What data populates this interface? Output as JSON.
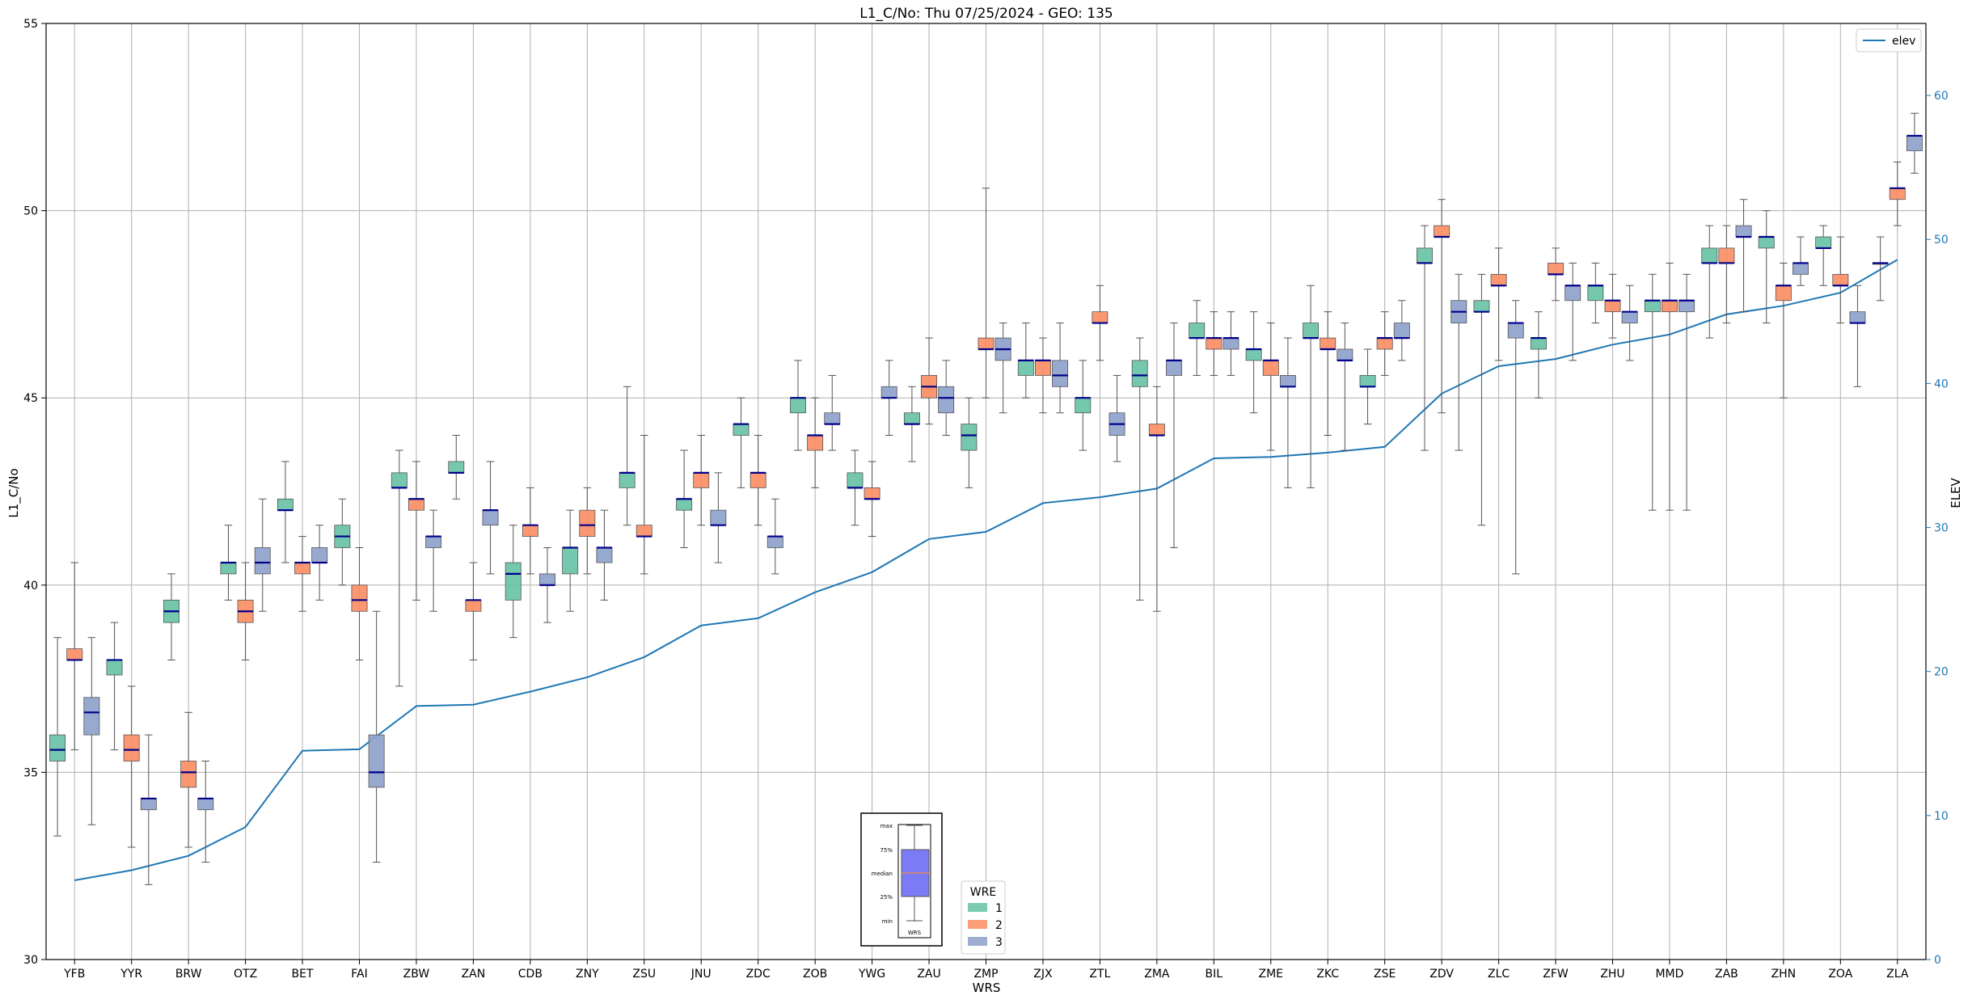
{
  "chart_data": {
    "type": "box",
    "title": "L1_C/No: Thu 07/25/2024 - GEO: 135",
    "xlabel": "WRS",
    "ylabel": "L1_C/No",
    "y2label": "ELEV",
    "ylim": [
      30,
      55
    ],
    "y2lim": [
      0,
      65
    ],
    "yticks": [
      30,
      35,
      40,
      45,
      50,
      55
    ],
    "y2ticks": [
      0,
      10,
      20,
      30,
      40,
      50,
      60
    ],
    "grid": true,
    "categories": [
      "YFB",
      "YYR",
      "BRW",
      "OTZ",
      "BET",
      "FAI",
      "ZBW",
      "ZAN",
      "CDB",
      "ZNY",
      "ZSU",
      "JNU",
      "ZDC",
      "ZOB",
      "YWG",
      "ZAU",
      "ZMP",
      "ZJX",
      "ZTL",
      "ZMA",
      "BIL",
      "ZME",
      "ZKC",
      "ZSE",
      "ZDV",
      "ZLC",
      "ZFW",
      "ZHU",
      "MMD",
      "ZAB",
      "ZHN",
      "ZOA",
      "ZLA"
    ],
    "box_legend": {
      "title": "WRE",
      "entries": [
        {
          "label": "1",
          "color": "#66c2a5"
        },
        {
          "label": "2",
          "color": "#fc8d62"
        },
        {
          "label": "3",
          "color": "#8da0cb"
        }
      ]
    },
    "line_legend": {
      "label": "elev",
      "color": "#1f77b4"
    },
    "median_color": "#00008b",
    "inset_legend": {
      "labels": [
        "max",
        "75%",
        "median",
        "25%",
        "min"
      ],
      "xlabel": "WRS",
      "fill_color": "#7b7bf5"
    },
    "boxes": [
      {
        "wrs": "YFB",
        "wre": 1,
        "min": 33.3,
        "q1": 35.3,
        "median": 35.6,
        "q3": 36.0,
        "max": 38.6
      },
      {
        "wrs": "YFB",
        "wre": 2,
        "min": 35.6,
        "q1": 38.0,
        "median": 38.0,
        "q3": 38.3,
        "max": 40.6
      },
      {
        "wrs": "YFB",
        "wre": 3,
        "min": 33.6,
        "q1": 36.0,
        "median": 36.6,
        "q3": 37.0,
        "max": 38.6
      },
      {
        "wrs": "YYR",
        "wre": 1,
        "min": 35.6,
        "q1": 37.6,
        "median": 38.0,
        "q3": 38.0,
        "max": 39.0
      },
      {
        "wrs": "YYR",
        "wre": 2,
        "min": 33.0,
        "q1": 35.3,
        "median": 35.6,
        "q3": 36.0,
        "max": 37.3
      },
      {
        "wrs": "YYR",
        "wre": 3,
        "min": 32.0,
        "q1": 34.0,
        "median": 34.3,
        "q3": 34.3,
        "max": 36.0
      },
      {
        "wrs": "BRW",
        "wre": 1,
        "min": 38.0,
        "q1": 39.0,
        "median": 39.3,
        "q3": 39.6,
        "max": 40.3
      },
      {
        "wrs": "BRW",
        "wre": 2,
        "min": 33.0,
        "q1": 34.6,
        "median": 35.0,
        "q3": 35.3,
        "max": 36.6
      },
      {
        "wrs": "BRW",
        "wre": 3,
        "min": 32.6,
        "q1": 34.0,
        "median": 34.3,
        "q3": 34.3,
        "max": 35.3
      },
      {
        "wrs": "OTZ",
        "wre": 1,
        "min": 39.6,
        "q1": 40.3,
        "median": 40.6,
        "q3": 40.6,
        "max": 41.6
      },
      {
        "wrs": "OTZ",
        "wre": 2,
        "min": 38.0,
        "q1": 39.0,
        "median": 39.3,
        "q3": 39.6,
        "max": 40.6
      },
      {
        "wrs": "OTZ",
        "wre": 3,
        "min": 39.3,
        "q1": 40.3,
        "median": 40.6,
        "q3": 41.0,
        "max": 42.3
      },
      {
        "wrs": "BET",
        "wre": 1,
        "min": 40.6,
        "q1": 42.0,
        "median": 42.0,
        "q3": 42.3,
        "max": 43.3
      },
      {
        "wrs": "BET",
        "wre": 2,
        "min": 39.3,
        "q1": 40.3,
        "median": 40.6,
        "q3": 40.6,
        "max": 41.3
      },
      {
        "wrs": "BET",
        "wre": 3,
        "min": 39.6,
        "q1": 40.6,
        "median": 40.6,
        "q3": 41.0,
        "max": 41.6
      },
      {
        "wrs": "FAI",
        "wre": 1,
        "min": 40.0,
        "q1": 41.0,
        "median": 41.3,
        "q3": 41.6,
        "max": 42.3
      },
      {
        "wrs": "FAI",
        "wre": 2,
        "min": 38.0,
        "q1": 39.3,
        "median": 39.6,
        "q3": 40.0,
        "max": 41.0
      },
      {
        "wrs": "FAI",
        "wre": 3,
        "min": 32.6,
        "q1": 34.6,
        "median": 35.0,
        "q3": 36.0,
        "max": 39.3
      },
      {
        "wrs": "ZBW",
        "wre": 1,
        "min": 37.3,
        "q1": 42.6,
        "median": 42.6,
        "q3": 43.0,
        "max": 43.6
      },
      {
        "wrs": "ZBW",
        "wre": 2,
        "min": 39.6,
        "q1": 42.0,
        "median": 42.3,
        "q3": 42.3,
        "max": 43.3
      },
      {
        "wrs": "ZBW",
        "wre": 3,
        "min": 39.3,
        "q1": 41.0,
        "median": 41.3,
        "q3": 41.3,
        "max": 42.0
      },
      {
        "wrs": "ZAN",
        "wre": 1,
        "min": 42.3,
        "q1": 43.0,
        "median": 43.0,
        "q3": 43.3,
        "max": 44.0
      },
      {
        "wrs": "ZAN",
        "wre": 2,
        "min": 38.0,
        "q1": 39.3,
        "median": 39.6,
        "q3": 39.6,
        "max": 40.6
      },
      {
        "wrs": "ZAN",
        "wre": 3,
        "min": 40.3,
        "q1": 41.6,
        "median": 42.0,
        "q3": 42.0,
        "max": 43.3
      },
      {
        "wrs": "CDB",
        "wre": 1,
        "min": 38.6,
        "q1": 39.6,
        "median": 40.3,
        "q3": 40.6,
        "max": 41.6
      },
      {
        "wrs": "CDB",
        "wre": 2,
        "min": 40.3,
        "q1": 41.3,
        "median": 41.6,
        "q3": 41.6,
        "max": 42.6
      },
      {
        "wrs": "CDB",
        "wre": 3,
        "min": 39.0,
        "q1": 40.0,
        "median": 40.0,
        "q3": 40.3,
        "max": 41.0
      },
      {
        "wrs": "ZNY",
        "wre": 1,
        "min": 39.3,
        "q1": 40.3,
        "median": 41.0,
        "q3": 41.0,
        "max": 42.0
      },
      {
        "wrs": "ZNY",
        "wre": 2,
        "min": 40.3,
        "q1": 41.3,
        "median": 41.6,
        "q3": 42.0,
        "max": 42.6
      },
      {
        "wrs": "ZNY",
        "wre": 3,
        "min": 39.6,
        "q1": 40.6,
        "median": 41.0,
        "q3": 41.0,
        "max": 42.0
      },
      {
        "wrs": "ZSU",
        "wre": 1,
        "min": 41.6,
        "q1": 42.6,
        "median": 43.0,
        "q3": 43.0,
        "max": 45.3
      },
      {
        "wrs": "ZSU",
        "wre": 2,
        "min": 40.3,
        "q1": 41.3,
        "median": 41.3,
        "q3": 41.6,
        "max": 44.0
      },
      {
        "wrs": "JNU",
        "wre": 1,
        "min": 41.0,
        "q1": 42.0,
        "median": 42.3,
        "q3": 42.3,
        "max": 43.6
      },
      {
        "wrs": "JNU",
        "wre": 2,
        "min": 41.6,
        "q1": 42.6,
        "median": 43.0,
        "q3": 43.0,
        "max": 44.0
      },
      {
        "wrs": "JNU",
        "wre": 3,
        "min": 40.6,
        "q1": 41.6,
        "median": 41.6,
        "q3": 42.0,
        "max": 43.0
      },
      {
        "wrs": "ZDC",
        "wre": 1,
        "min": 42.6,
        "q1": 44.0,
        "median": 44.3,
        "q3": 44.3,
        "max": 45.0
      },
      {
        "wrs": "ZDC",
        "wre": 2,
        "min": 41.6,
        "q1": 42.6,
        "median": 43.0,
        "q3": 43.0,
        "max": 44.0
      },
      {
        "wrs": "ZDC",
        "wre": 3,
        "min": 40.3,
        "q1": 41.0,
        "median": 41.3,
        "q3": 41.3,
        "max": 42.3
      },
      {
        "wrs": "ZOB",
        "wre": 1,
        "min": 43.6,
        "q1": 44.6,
        "median": 45.0,
        "q3": 45.0,
        "max": 46.0
      },
      {
        "wrs": "ZOB",
        "wre": 2,
        "min": 42.6,
        "q1": 43.6,
        "median": 44.0,
        "q3": 44.0,
        "max": 45.0
      },
      {
        "wrs": "ZOB",
        "wre": 3,
        "min": 43.6,
        "q1": 44.3,
        "median": 44.3,
        "q3": 44.6,
        "max": 45.6
      },
      {
        "wrs": "YWG",
        "wre": 1,
        "min": 41.6,
        "q1": 42.6,
        "median": 42.6,
        "q3": 43.0,
        "max": 43.6
      },
      {
        "wrs": "YWG",
        "wre": 2,
        "min": 41.3,
        "q1": 42.3,
        "median": 42.3,
        "q3": 42.6,
        "max": 43.3
      },
      {
        "wrs": "YWG",
        "wre": 3,
        "min": 44.0,
        "q1": 45.0,
        "median": 45.0,
        "q3": 45.3,
        "max": 46.0
      },
      {
        "wrs": "ZAU",
        "wre": 1,
        "min": 43.3,
        "q1": 44.3,
        "median": 44.3,
        "q3": 44.6,
        "max": 45.3
      },
      {
        "wrs": "ZAU",
        "wre": 2,
        "min": 44.3,
        "q1": 45.0,
        "median": 45.3,
        "q3": 45.6,
        "max": 46.6
      },
      {
        "wrs": "ZAU",
        "wre": 3,
        "min": 44.0,
        "q1": 44.6,
        "median": 45.0,
        "q3": 45.3,
        "max": 46.0
      },
      {
        "wrs": "ZMP",
        "wre": 1,
        "min": 42.6,
        "q1": 43.6,
        "median": 44.0,
        "q3": 44.3,
        "max": 45.0
      },
      {
        "wrs": "ZMP",
        "wre": 2,
        "min": 45.0,
        "q1": 46.3,
        "median": 46.3,
        "q3": 46.6,
        "max": 50.6
      },
      {
        "wrs": "ZMP",
        "wre": 3,
        "min": 44.6,
        "q1": 46.0,
        "median": 46.3,
        "q3": 46.6,
        "max": 47.0
      },
      {
        "wrs": "ZJX",
        "wre": 1,
        "min": 45.0,
        "q1": 45.6,
        "median": 46.0,
        "q3": 46.0,
        "max": 47.0
      },
      {
        "wrs": "ZJX",
        "wre": 2,
        "min": 44.6,
        "q1": 45.6,
        "median": 46.0,
        "q3": 46.0,
        "max": 46.6
      },
      {
        "wrs": "ZJX",
        "wre": 3,
        "min": 44.6,
        "q1": 45.3,
        "median": 45.6,
        "q3": 46.0,
        "max": 47.0
      },
      {
        "wrs": "ZTL",
        "wre": 1,
        "min": 43.6,
        "q1": 44.6,
        "median": 45.0,
        "q3": 45.0,
        "max": 46.0
      },
      {
        "wrs": "ZTL",
        "wre": 2,
        "min": 46.0,
        "q1": 47.0,
        "median": 47.0,
        "q3": 47.3,
        "max": 48.0
      },
      {
        "wrs": "ZTL",
        "wre": 3,
        "min": 43.3,
        "q1": 44.0,
        "median": 44.3,
        "q3": 44.6,
        "max": 45.6
      },
      {
        "wrs": "ZMA",
        "wre": 1,
        "min": 39.6,
        "q1": 45.3,
        "median": 45.6,
        "q3": 46.0,
        "max": 46.6
      },
      {
        "wrs": "ZMA",
        "wre": 2,
        "min": 39.3,
        "q1": 44.0,
        "median": 44.0,
        "q3": 44.3,
        "max": 45.3
      },
      {
        "wrs": "ZMA",
        "wre": 3,
        "min": 41.0,
        "q1": 45.6,
        "median": 46.0,
        "q3": 46.0,
        "max": 47.0
      },
      {
        "wrs": "BIL",
        "wre": 1,
        "min": 45.6,
        "q1": 46.6,
        "median": 46.6,
        "q3": 47.0,
        "max": 47.6
      },
      {
        "wrs": "BIL",
        "wre": 2,
        "min": 45.6,
        "q1": 46.3,
        "median": 46.6,
        "q3": 46.6,
        "max": 47.3
      },
      {
        "wrs": "BIL",
        "wre": 3,
        "min": 45.6,
        "q1": 46.3,
        "median": 46.6,
        "q3": 46.6,
        "max": 47.3
      },
      {
        "wrs": "ZME",
        "wre": 1,
        "min": 44.6,
        "q1": 46.0,
        "median": 46.3,
        "q3": 46.3,
        "max": 47.3
      },
      {
        "wrs": "ZME",
        "wre": 2,
        "min": 43.6,
        "q1": 45.6,
        "median": 46.0,
        "q3": 46.0,
        "max": 47.0
      },
      {
        "wrs": "ZME",
        "wre": 3,
        "min": 42.6,
        "q1": 45.3,
        "median": 45.3,
        "q3": 45.6,
        "max": 46.6
      },
      {
        "wrs": "ZKC",
        "wre": 1,
        "min": 42.6,
        "q1": 46.6,
        "median": 46.6,
        "q3": 47.0,
        "max": 48.0
      },
      {
        "wrs": "ZKC",
        "wre": 2,
        "min": 44.0,
        "q1": 46.3,
        "median": 46.3,
        "q3": 46.6,
        "max": 47.3
      },
      {
        "wrs": "ZKC",
        "wre": 3,
        "min": 43.6,
        "q1": 46.0,
        "median": 46.0,
        "q3": 46.3,
        "max": 47.0
      },
      {
        "wrs": "ZSE",
        "wre": 1,
        "min": 44.3,
        "q1": 45.3,
        "median": 45.3,
        "q3": 45.6,
        "max": 46.3
      },
      {
        "wrs": "ZSE",
        "wre": 2,
        "min": 45.6,
        "q1": 46.3,
        "median": 46.6,
        "q3": 46.6,
        "max": 47.3
      },
      {
        "wrs": "ZSE",
        "wre": 3,
        "min": 46.0,
        "q1": 46.6,
        "median": 46.6,
        "q3": 47.0,
        "max": 47.6
      },
      {
        "wrs": "ZDV",
        "wre": 1,
        "min": 43.6,
        "q1": 48.6,
        "median": 48.6,
        "q3": 49.0,
        "max": 49.6
      },
      {
        "wrs": "ZDV",
        "wre": 2,
        "min": 44.6,
        "q1": 49.3,
        "median": 49.3,
        "q3": 49.6,
        "max": 50.3
      },
      {
        "wrs": "ZDV",
        "wre": 3,
        "min": 43.6,
        "q1": 47.0,
        "median": 47.3,
        "q3": 47.6,
        "max": 48.3
      },
      {
        "wrs": "ZLC",
        "wre": 1,
        "min": 41.6,
        "q1": 47.3,
        "median": 47.3,
        "q3": 47.6,
        "max": 48.3
      },
      {
        "wrs": "ZLC",
        "wre": 2,
        "min": 46.0,
        "q1": 48.0,
        "median": 48.0,
        "q3": 48.3,
        "max": 49.0
      },
      {
        "wrs": "ZLC",
        "wre": 3,
        "min": 40.3,
        "q1": 46.6,
        "median": 47.0,
        "q3": 47.0,
        "max": 47.6
      },
      {
        "wrs": "ZFW",
        "wre": 1,
        "min": 45.0,
        "q1": 46.3,
        "median": 46.6,
        "q3": 46.6,
        "max": 47.3
      },
      {
        "wrs": "ZFW",
        "wre": 2,
        "min": 47.6,
        "q1": 48.3,
        "median": 48.3,
        "q3": 48.6,
        "max": 49.0
      },
      {
        "wrs": "ZFW",
        "wre": 3,
        "min": 46.0,
        "q1": 47.6,
        "median": 48.0,
        "q3": 48.0,
        "max": 48.6
      },
      {
        "wrs": "ZHU",
        "wre": 1,
        "min": 47.0,
        "q1": 47.6,
        "median": 48.0,
        "q3": 48.0,
        "max": 48.6
      },
      {
        "wrs": "ZHU",
        "wre": 2,
        "min": 46.6,
        "q1": 47.3,
        "median": 47.6,
        "q3": 47.6,
        "max": 48.3
      },
      {
        "wrs": "ZHU",
        "wre": 3,
        "min": 46.0,
        "q1": 47.0,
        "median": 47.3,
        "q3": 47.3,
        "max": 48.0
      },
      {
        "wrs": "MMD",
        "wre": 1,
        "min": 42.0,
        "q1": 47.3,
        "median": 47.6,
        "q3": 47.6,
        "max": 48.3
      },
      {
        "wrs": "MMD",
        "wre": 2,
        "min": 42.0,
        "q1": 47.3,
        "median": 47.6,
        "q3": 47.6,
        "max": 48.6
      },
      {
        "wrs": "MMD",
        "wre": 3,
        "min": 42.0,
        "q1": 47.3,
        "median": 47.6,
        "q3": 47.6,
        "max": 48.3
      },
      {
        "wrs": "ZAB",
        "wre": 1,
        "min": 46.6,
        "q1": 48.6,
        "median": 48.6,
        "q3": 49.0,
        "max": 49.6
      },
      {
        "wrs": "ZAB",
        "wre": 2,
        "min": 47.0,
        "q1": 48.6,
        "median": 48.6,
        "q3": 49.0,
        "max": 49.6
      },
      {
        "wrs": "ZAB",
        "wre": 3,
        "min": 47.3,
        "q1": 49.3,
        "median": 49.3,
        "q3": 49.6,
        "max": 50.3
      },
      {
        "wrs": "ZHN",
        "wre": 1,
        "min": 47.0,
        "q1": 49.0,
        "median": 49.3,
        "q3": 49.3,
        "max": 50.0
      },
      {
        "wrs": "ZHN",
        "wre": 2,
        "min": 45.0,
        "q1": 47.6,
        "median": 48.0,
        "q3": 48.0,
        "max": 48.6
      },
      {
        "wrs": "ZHN",
        "wre": 3,
        "min": 48.0,
        "q1": 48.3,
        "median": 48.6,
        "q3": 48.6,
        "max": 49.3
      },
      {
        "wrs": "ZOA",
        "wre": 1,
        "min": 48.0,
        "q1": 49.0,
        "median": 49.0,
        "q3": 49.3,
        "max": 49.6
      },
      {
        "wrs": "ZOA",
        "wre": 2,
        "min": 47.0,
        "q1": 48.0,
        "median": 48.0,
        "q3": 48.3,
        "max": 49.3
      },
      {
        "wrs": "ZOA",
        "wre": 3,
        "min": 45.3,
        "q1": 47.0,
        "median": 47.0,
        "q3": 47.3,
        "max": 48.0
      },
      {
        "wrs": "ZLA",
        "wre": 1,
        "min": 47.6,
        "q1": 48.6,
        "median": 48.6,
        "q3": 48.6,
        "max": 49.3
      },
      {
        "wrs": "ZLA",
        "wre": 2,
        "min": 49.6,
        "q1": 50.3,
        "median": 50.6,
        "q3": 50.6,
        "max": 51.3
      },
      {
        "wrs": "ZLA",
        "wre": 3,
        "min": 51.0,
        "q1": 51.6,
        "median": 52.0,
        "q3": 52.0,
        "max": 52.6
      }
    ],
    "elev": [
      5.5,
      6.2,
      7.2,
      9.2,
      14.5,
      14.6,
      17.6,
      17.7,
      18.6,
      19.6,
      21.0,
      23.2,
      23.7,
      25.5,
      26.9,
      29.2,
      29.7,
      31.7,
      32.1,
      32.7,
      34.8,
      34.9,
      35.2,
      35.6,
      39.3,
      41.2,
      41.7,
      42.7,
      43.4,
      44.8,
      45.4,
      46.3,
      48.6
    ]
  }
}
